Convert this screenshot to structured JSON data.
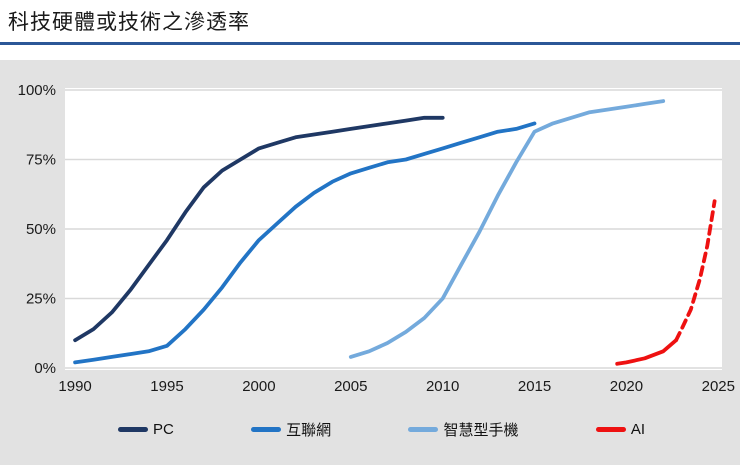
{
  "page": {
    "title": "科技硬體或技術之滲透率"
  },
  "colors": {
    "title_rule": "#2b5797",
    "panel_bg": "#e2e2e2",
    "plot_bg": "#ffffff",
    "grid": "#d9d9d9",
    "axis_text": "#1a1a1a"
  },
  "chart_data": {
    "type": "line",
    "title": "科技硬體或技術之滲透率",
    "xlabel": "",
    "ylabel": "",
    "xlim": [
      1989.45,
      2025.2
    ],
    "ylim": [
      0,
      100
    ],
    "xticks": [
      1990,
      1995,
      2000,
      2005,
      2010,
      2015,
      2020,
      2025
    ],
    "yticks": [
      0,
      25,
      50,
      75,
      100
    ],
    "ytick_suffix": "%",
    "grid": true,
    "legend_position": "bottom",
    "line_width": 3.8,
    "series": [
      {
        "name": "PC",
        "color": "#1f3864",
        "segments": [
          {
            "style": "solid",
            "points": [
              [
                1990,
                10
              ],
              [
                1991,
                14
              ],
              [
                1992,
                20
              ],
              [
                1993,
                28
              ],
              [
                1994,
                37
              ],
              [
                1995,
                46
              ],
              [
                1996,
                56
              ],
              [
                1997,
                65
              ],
              [
                1998,
                71
              ],
              [
                1999,
                75
              ],
              [
                2000,
                79
              ],
              [
                2001,
                81
              ],
              [
                2002,
                83
              ],
              [
                2003,
                84
              ],
              [
                2004,
                85
              ],
              [
                2005,
                86
              ],
              [
                2006,
                87
              ],
              [
                2007,
                88
              ],
              [
                2008,
                89
              ],
              [
                2009,
                90
              ],
              [
                2010,
                90
              ]
            ]
          }
        ]
      },
      {
        "name": "互聯網",
        "color": "#2274c5",
        "segments": [
          {
            "style": "solid",
            "points": [
              [
                1990,
                2
              ],
              [
                1991,
                3
              ],
              [
                1992,
                4
              ],
              [
                1993,
                5
              ],
              [
                1994,
                6
              ],
              [
                1995,
                8
              ],
              [
                1996,
                14
              ],
              [
                1997,
                21
              ],
              [
                1998,
                29
              ],
              [
                1999,
                38
              ],
              [
                2000,
                46
              ],
              [
                2001,
                52
              ],
              [
                2002,
                58
              ],
              [
                2003,
                63
              ],
              [
                2004,
                67
              ],
              [
                2005,
                70
              ],
              [
                2006,
                72
              ],
              [
                2007,
                74
              ],
              [
                2008,
                75
              ],
              [
                2009,
                77
              ],
              [
                2010,
                79
              ],
              [
                2011,
                81
              ],
              [
                2012,
                83
              ],
              [
                2013,
                85
              ],
              [
                2014,
                86
              ],
              [
                2015,
                88
              ]
            ]
          }
        ]
      },
      {
        "name": "智慧型手機",
        "color": "#74aadc",
        "segments": [
          {
            "style": "solid",
            "points": [
              [
                2005,
                4
              ],
              [
                2006,
                6
              ],
              [
                2007,
                9
              ],
              [
                2008,
                13
              ],
              [
                2009,
                18
              ],
              [
                2010,
                25
              ],
              [
                2011,
                37
              ],
              [
                2012,
                49
              ],
              [
                2013,
                62
              ],
              [
                2014,
                74
              ],
              [
                2015,
                85
              ],
              [
                2016,
                88
              ],
              [
                2017,
                90
              ],
              [
                2018,
                92
              ],
              [
                2019,
                93
              ],
              [
                2020,
                94
              ],
              [
                2021,
                95
              ],
              [
                2022,
                96
              ]
            ]
          }
        ]
      },
      {
        "name": "AI",
        "color": "#ee1111",
        "segments": [
          {
            "style": "solid",
            "points": [
              [
                2019.5,
                1.5
              ],
              [
                2020,
                2
              ],
              [
                2021,
                3.5
              ],
              [
                2022,
                6
              ],
              [
                2022.7,
                10
              ]
            ]
          },
          {
            "style": "dashed",
            "points": [
              [
                2022.7,
                10
              ],
              [
                2023,
                14
              ],
              [
                2023.5,
                21
              ],
              [
                2024,
                32
              ],
              [
                2024.4,
                44
              ],
              [
                2024.8,
                60
              ]
            ]
          }
        ]
      }
    ]
  }
}
